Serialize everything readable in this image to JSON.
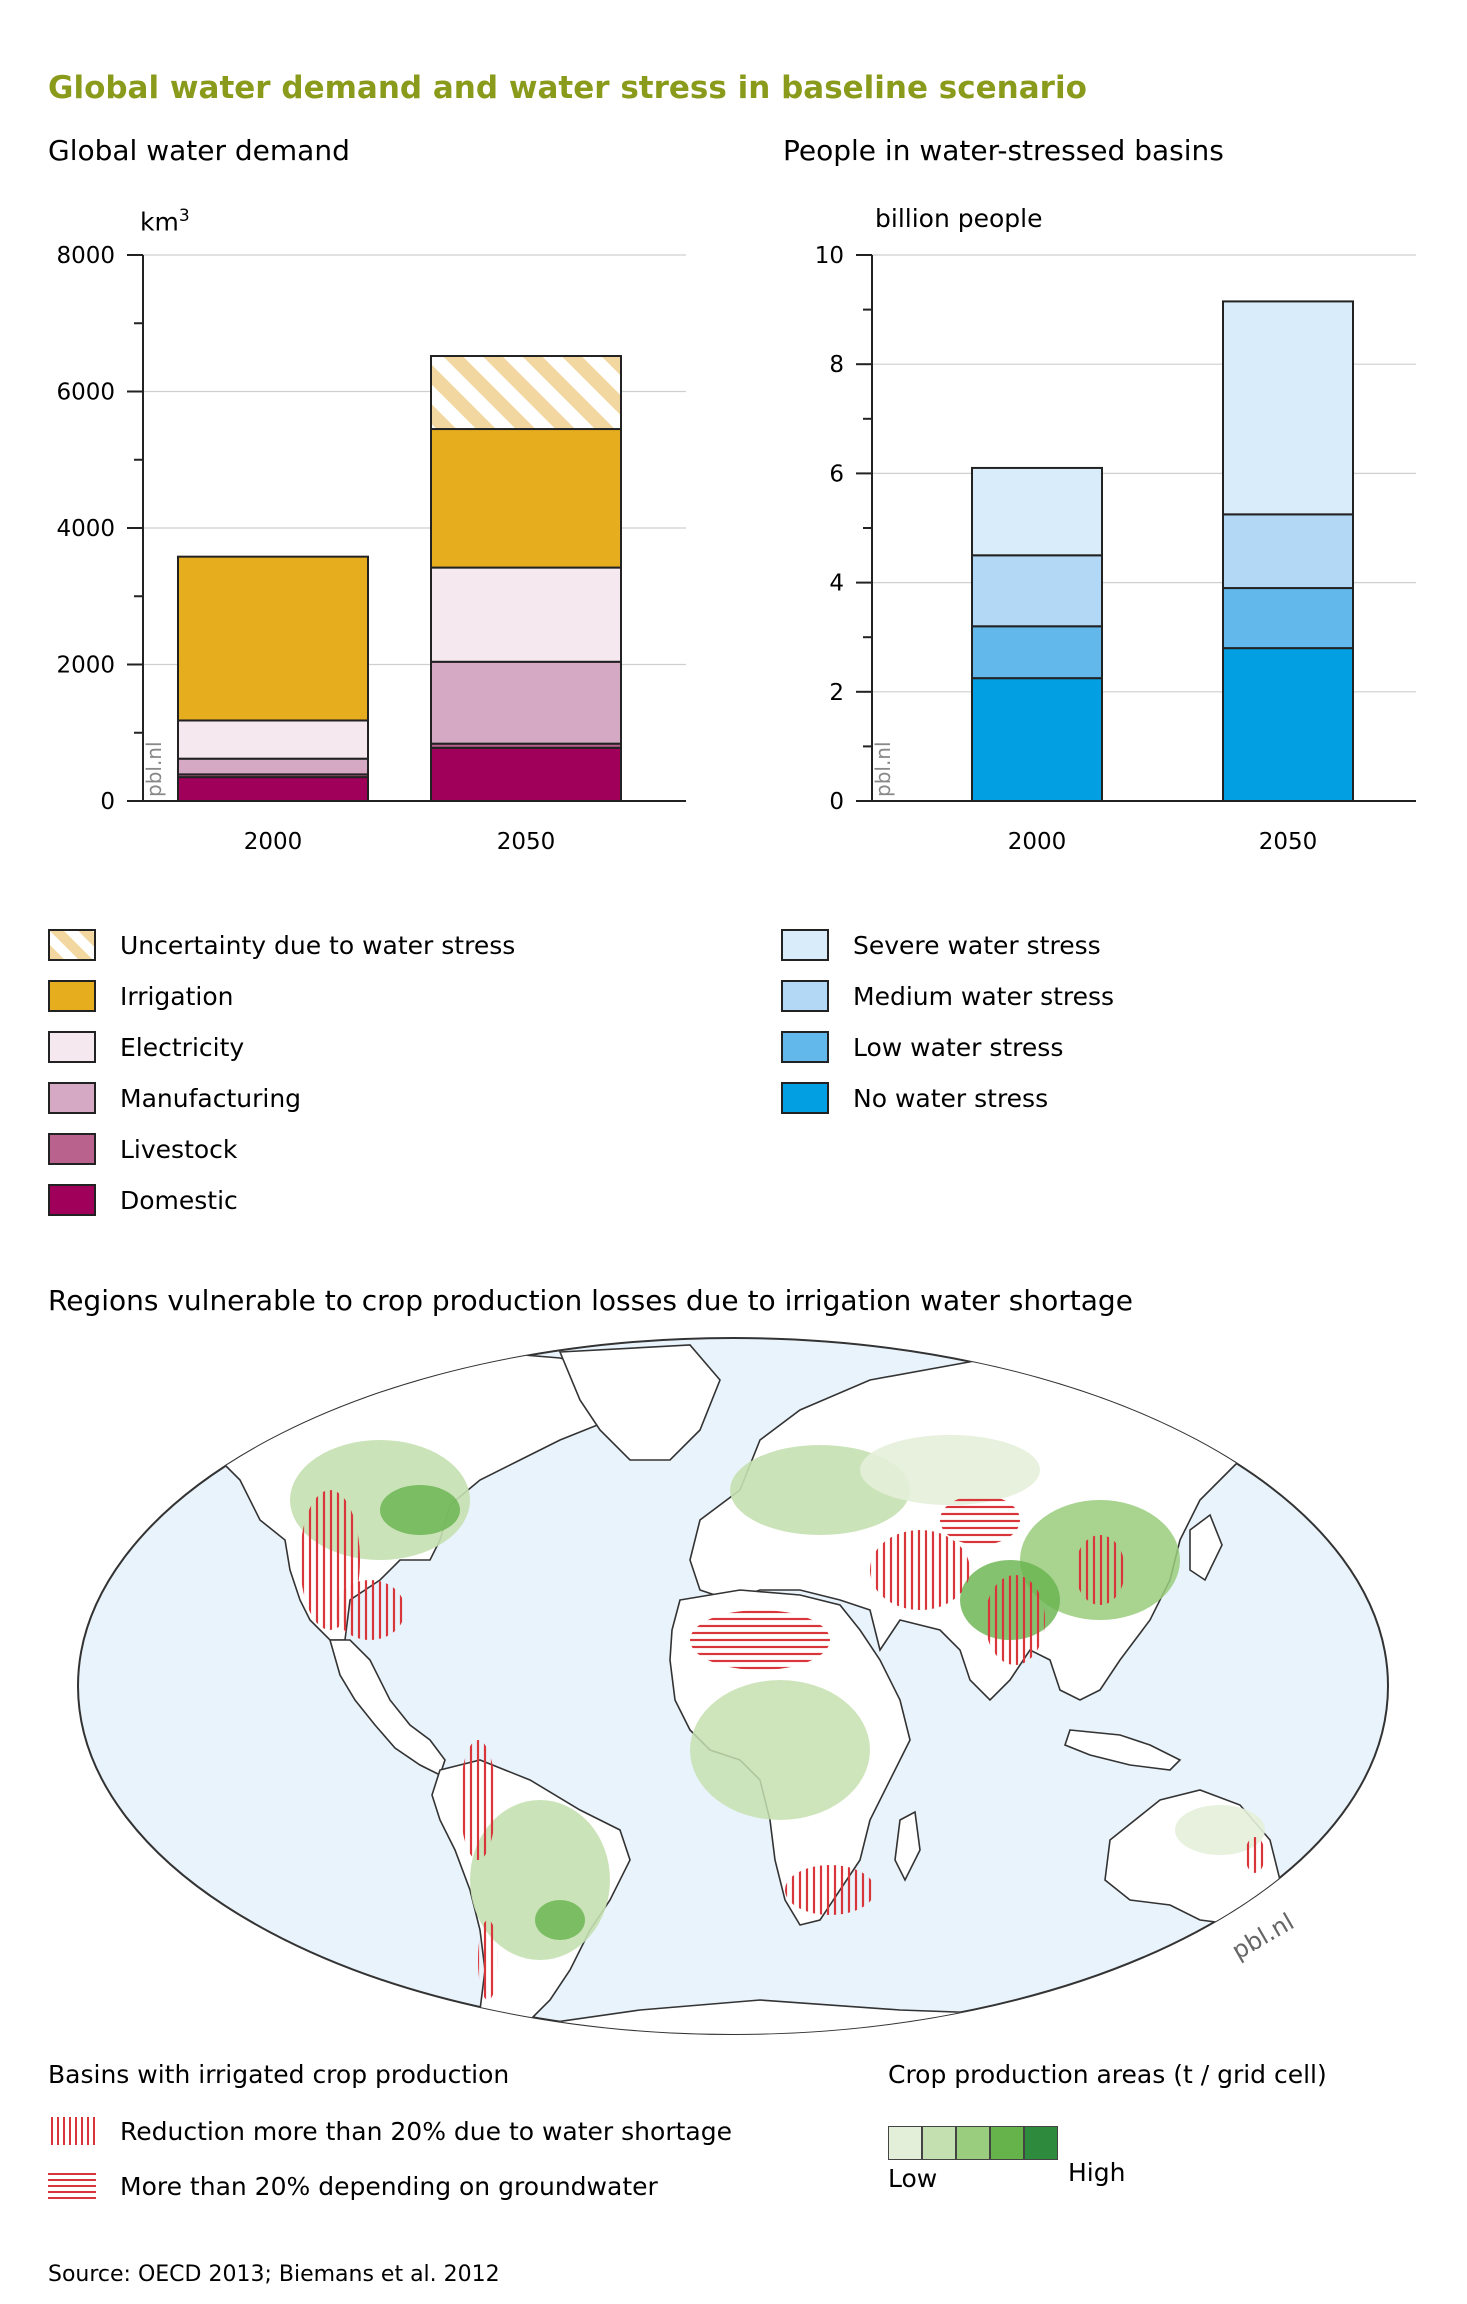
{
  "title": "Global water demand and water stress in baseline scenario",
  "colors": {
    "uncertainty": "#f2d8a0",
    "irrigation": "#e6ad1f",
    "electricity": "#f5e8ee",
    "manufacturing": "#d5a8c3",
    "livestock": "#b9628e",
    "domestic": "#a0005a",
    "severe": "#d8ecfa",
    "medium": "#b3d8f5",
    "low": "#62b7eb",
    "none": "#029fe3",
    "ocean": "#e9f3fb",
    "map_red": "#d8363a",
    "crop_1": "#e4efd9",
    "crop_2": "#c5e0b0",
    "crop_3": "#9acd7d",
    "crop_4": "#66b34c",
    "crop_5": "#2e8a3d"
  },
  "chart_data": [
    {
      "type": "bar",
      "stacked": true,
      "title": "Global water demand",
      "ylabel": "km3",
      "ylabel_base": "km",
      "ylabel_sup": "3",
      "ylim": [
        0,
        8000
      ],
      "yticks": [
        "0",
        "2000",
        "4000",
        "6000",
        "8000"
      ],
      "grid": true,
      "watermark": "pbl.nl",
      "categories": [
        "2000",
        "2050"
      ],
      "series": [
        {
          "name": "Domestic",
          "values": [
            350,
            780
          ]
        },
        {
          "name": "Livestock",
          "values": [
            40,
            60
          ]
        },
        {
          "name": "Manufacturing",
          "values": [
            230,
            1200
          ]
        },
        {
          "name": "Electricity",
          "values": [
            560,
            1380
          ]
        },
        {
          "name": "Irrigation",
          "values": [
            2400,
            2030
          ]
        },
        {
          "name": "Uncertainty due to water stress",
          "values": [
            0,
            1070
          ]
        }
      ]
    },
    {
      "type": "bar",
      "stacked": true,
      "title": "People in water-stressed basins",
      "ylabel": "billion people",
      "ylim": [
        0,
        10
      ],
      "yticks": [
        "0",
        "2",
        "4",
        "6",
        "8",
        "10"
      ],
      "grid": true,
      "watermark": "pbl.nl",
      "categories": [
        "2000",
        "2050"
      ],
      "series": [
        {
          "name": "No water stress",
          "values": [
            2.25,
            2.8
          ]
        },
        {
          "name": "Low water stress",
          "values": [
            0.95,
            1.1
          ]
        },
        {
          "name": "Medium water stress",
          "values": [
            1.3,
            1.35
          ]
        },
        {
          "name": "Severe water stress",
          "values": [
            1.6,
            3.9
          ]
        }
      ]
    }
  ],
  "legend_left": [
    {
      "label": "Uncertainty due to water stress",
      "color_key": "uncertainty",
      "hatched": true
    },
    {
      "label": "Irrigation",
      "color_key": "irrigation"
    },
    {
      "label": "Electricity",
      "color_key": "electricity"
    },
    {
      "label": "Manufacturing",
      "color_key": "manufacturing"
    },
    {
      "label": "Livestock",
      "color_key": "livestock"
    },
    {
      "label": "Domestic",
      "color_key": "domestic"
    }
  ],
  "legend_right": [
    {
      "label": "Severe water stress",
      "color_key": "severe"
    },
    {
      "label": "Medium water stress",
      "color_key": "medium"
    },
    {
      "label": "Low water stress",
      "color_key": "low"
    },
    {
      "label": "No water stress",
      "color_key": "none"
    }
  ],
  "map": {
    "title": "Regions vulnerable to crop production losses due to irrigation water shortage",
    "watermark": "pbl.nl",
    "basins_title": "Basins with irrigated crop production",
    "basins_items": [
      "Reduction more than 20% due to water shortage",
      "More than 20% depending on groundwater"
    ],
    "crop_title": "Crop production areas (t / grid cell)",
    "crop_low": "Low",
    "crop_high": "High"
  },
  "source": "Source: OECD 2013; Biemans et al. 2012"
}
